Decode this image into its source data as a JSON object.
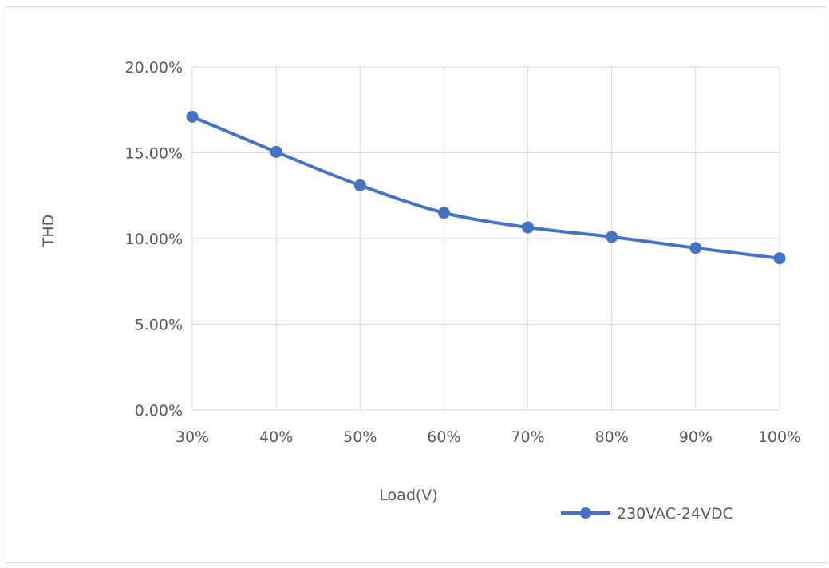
{
  "chart_data": {
    "type": "line",
    "categories": [
      "30%",
      "40%",
      "50%",
      "60%",
      "70%",
      "80%",
      "90%",
      "100%"
    ],
    "series": [
      {
        "name": "230VAC-24VDC",
        "values": [
          17.1,
          15.05,
          13.1,
          11.5,
          10.65,
          10.1,
          9.45,
          8.85
        ],
        "color": "#4472c4"
      }
    ],
    "xlabel": "Load(V)",
    "ylabel": "THD",
    "yticks": [
      "0.00%",
      "5.00%",
      "10.00%",
      "15.00%",
      "20.00%"
    ],
    "ylim": [
      0,
      20
    ],
    "grid": true,
    "legend_position": "bottom-right",
    "smooth": true
  }
}
